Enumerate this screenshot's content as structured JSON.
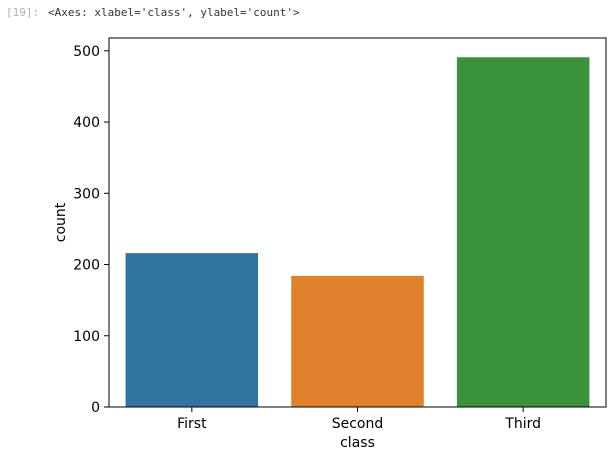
{
  "output": {
    "prompt": "[19]:",
    "repr": "<Axes: xlabel='class', ylabel='count'>"
  },
  "chart_data": {
    "type": "bar",
    "categories": [
      "First",
      "Second",
      "Third"
    ],
    "values": [
      216,
      184,
      491
    ],
    "colors": [
      "#3274a1",
      "#e1812c",
      "#3a923a"
    ],
    "xlabel": "class",
    "ylabel": "count",
    "ylim": [
      0,
      518
    ],
    "yticks": [
      0,
      100,
      200,
      300,
      400,
      500
    ],
    "grid": false
  }
}
